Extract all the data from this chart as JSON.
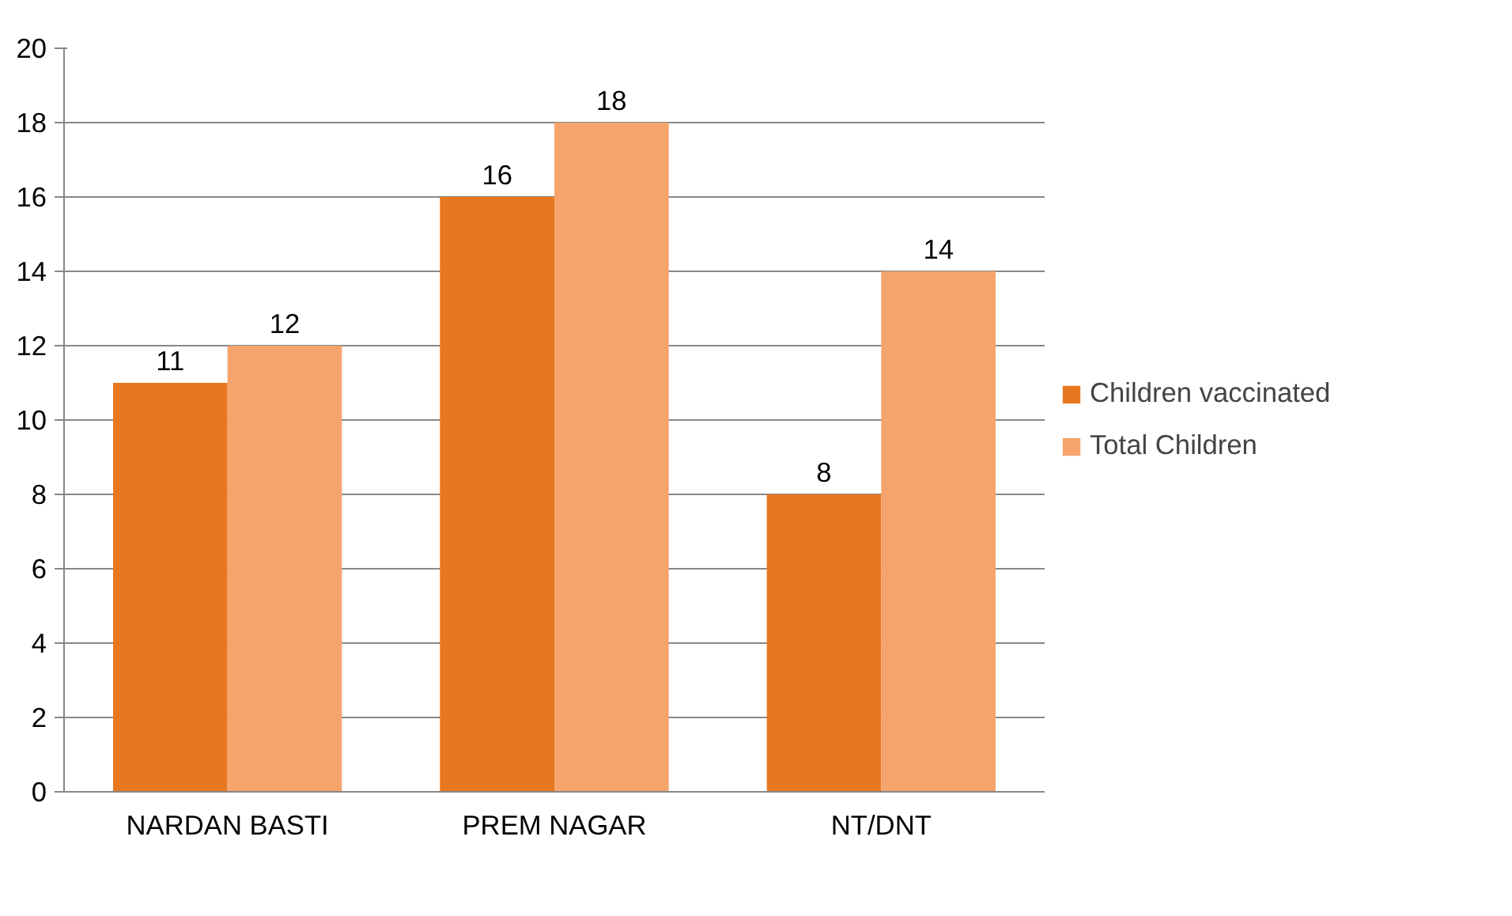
{
  "chart_data": {
    "type": "bar",
    "categories": [
      "NARDAN BASTI",
      "PREM NAGAR",
      "NT/DNT"
    ],
    "series": [
      {
        "name": "Children vaccinated",
        "color": "#e8781f",
        "values": [
          11,
          16,
          8
        ]
      },
      {
        "name": "Total Children",
        "color": "#f5a46c",
        "values": [
          12,
          18,
          14
        ]
      }
    ],
    "ylim": [
      0,
      20
    ],
    "yticks": [
      0,
      2,
      4,
      6,
      8,
      10,
      12,
      14,
      16,
      18,
      20
    ],
    "grid": "y",
    "legend": "right",
    "data_labels": true
  }
}
